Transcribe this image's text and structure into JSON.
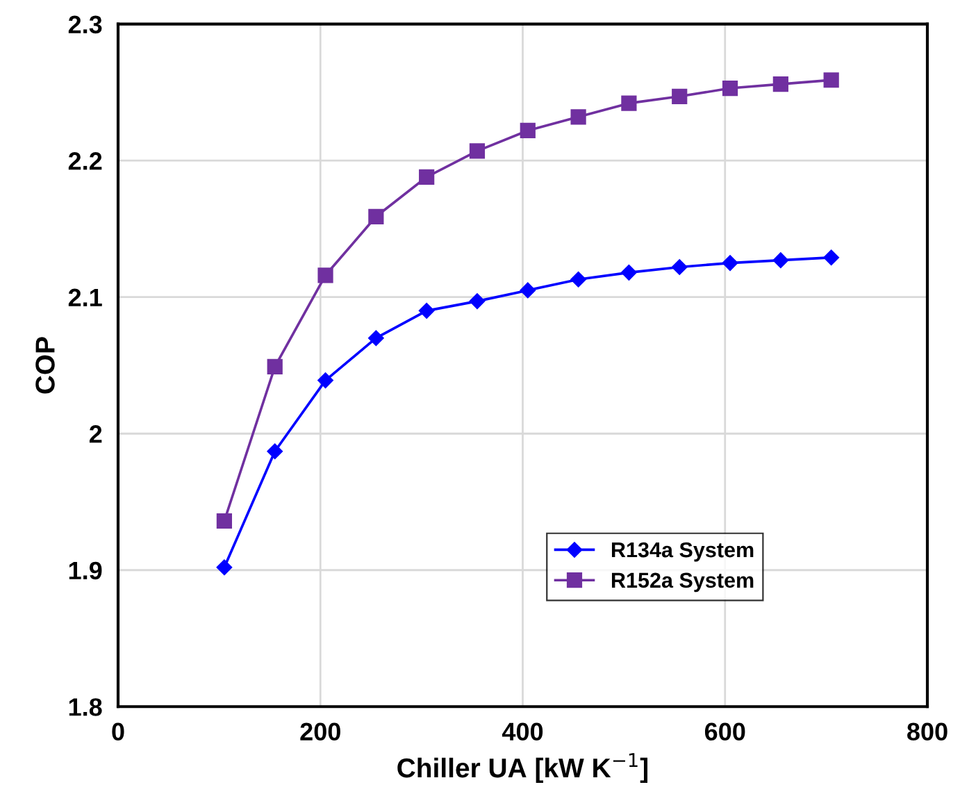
{
  "chart_data": {
    "type": "line",
    "xlabel": "Chiller UA [kW K$^{−1}$]",
    "ylabel": "COP",
    "x": [
      105,
      155,
      205,
      255,
      305,
      355,
      405,
      455,
      505,
      555,
      605,
      655,
      705
    ],
    "series": [
      {
        "name": "R134a System",
        "color": "#0000ff",
        "marker": "diamond",
        "values": [
          1.902,
          1.987,
          2.039,
          2.07,
          2.09,
          2.097,
          2.105,
          2.113,
          2.118,
          2.122,
          2.125,
          2.127,
          2.129
        ]
      },
      {
        "name": "R152a System",
        "color": "#7030a0",
        "marker": "square",
        "values": [
          1.936,
          2.049,
          2.116,
          2.159,
          2.188,
          2.207,
          2.222,
          2.232,
          2.242,
          2.247,
          2.253,
          2.256,
          2.259
        ]
      }
    ],
    "xlim": [
      0,
      800
    ],
    "xticks": [
      0,
      200,
      400,
      600,
      800
    ],
    "ylim": [
      1.8,
      2.3
    ],
    "yticks": [
      1.8,
      1.9,
      2,
      2.1,
      2.2,
      2.3
    ],
    "grid": true,
    "legend": "bottom right",
    "line_style": "solid"
  }
}
